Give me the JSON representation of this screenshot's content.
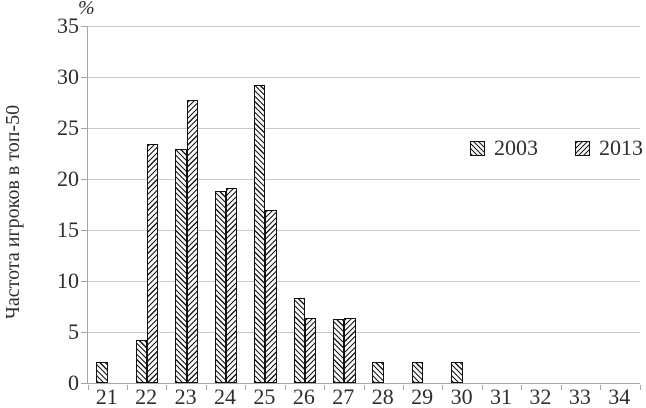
{
  "chart_data": {
    "type": "bar",
    "title": "",
    "unit_label": "%",
    "ylabel": "Частота игроков в топ-50",
    "xlabel": "",
    "categories": [
      "21",
      "22",
      "23",
      "24",
      "25",
      "26",
      "27",
      "28",
      "29",
      "30",
      "31",
      "32",
      "33",
      "34"
    ],
    "series": [
      {
        "name": "2003",
        "hatch": "backslash-diagonal",
        "values": [
          2.1,
          4.2,
          22.9,
          18.8,
          29.2,
          8.3,
          6.3,
          2.1,
          2.1,
          2.1,
          0,
          0,
          0,
          0
        ]
      },
      {
        "name": "2013",
        "hatch": "forward-slash-diagonal",
        "values": [
          0,
          23.4,
          27.7,
          19.1,
          17.0,
          6.4,
          6.4,
          0,
          0,
          0,
          0,
          0,
          0,
          0
        ]
      }
    ],
    "y_ticks": [
      0,
      5,
      10,
      15,
      20,
      25,
      30,
      35
    ],
    "ylim": [
      0,
      35
    ],
    "grid": true,
    "legend_position": "center-right",
    "colors": {
      "hatch": "#1a1a1a",
      "bar_background": "#fbfbfb",
      "bar_border": "#111111",
      "gridline": "#c9c9c9",
      "axis": "#a6a6a6",
      "text": "#2e2e2e"
    }
  }
}
